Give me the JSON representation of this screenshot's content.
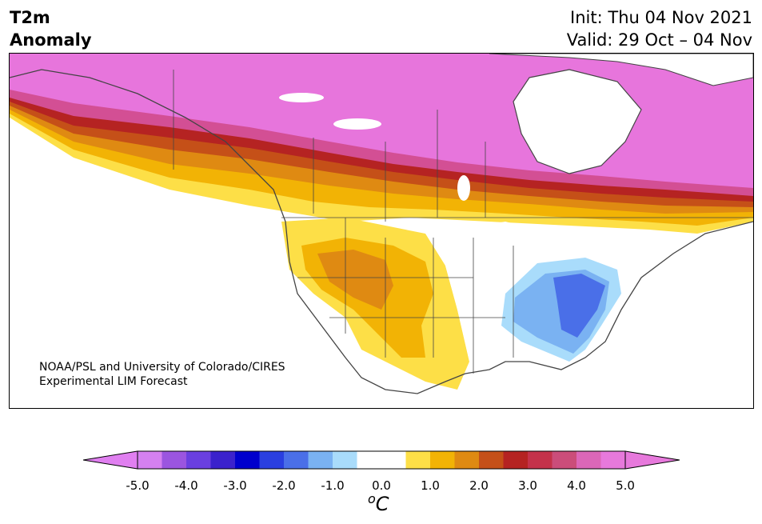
{
  "header": {
    "var_line1": "T2m",
    "var_line2": "Anomaly",
    "init": "Init: Thu 04 Nov 2021",
    "valid": "Valid: 29 Oct – 04 Nov"
  },
  "credit": {
    "line1": "NOAA/PSL and University of Colorado/CIRES",
    "line2": "Experimental LIM Forecast"
  },
  "colorbar": {
    "unit_base": "C",
    "unit_sup": "o",
    "min": -5.0,
    "max": 5.0,
    "ticks": [
      "-5.0",
      "-4.0",
      "-3.0",
      "-2.0",
      "-1.0",
      "0.0",
      "1.0",
      "2.0",
      "3.0",
      "4.0",
      "5.0"
    ],
    "colors": [
      "#d580f0",
      "#9b55e0",
      "#6a3fe0",
      "#3b22cc",
      "#0000cd",
      "#2a3fe0",
      "#4a6fe8",
      "#7ab2f2",
      "#a9dcfb",
      "#ffffff",
      "#ffffff",
      "#fddf47",
      "#f2b305",
      "#df8a12",
      "#c55018",
      "#b52322",
      "#c4324a",
      "#cb4d7a",
      "#dc67b8",
      "#e779dc"
    ],
    "under_color": "#e07ff0",
    "over_color": "#e779dc"
  },
  "map": {
    "anomaly_colors": {
      "strong_warm": "#e775dc",
      "pink": "#d34f94",
      "red": "#b52322",
      "brown": "#c55018",
      "orange": "#df8a12",
      "amber": "#f2b305",
      "yellow": "#fddf47",
      "neutral": "#ffffff",
      "lt_blue": "#a9dcfb",
      "blue": "#7ab2f2",
      "med_blue": "#4a6fe8"
    }
  }
}
